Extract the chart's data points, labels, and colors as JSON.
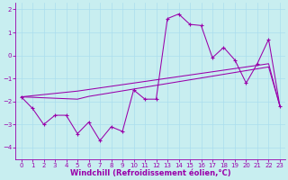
{
  "xlabel": "Windchill (Refroidissement éolien,°C)",
  "bg_color": "#c8eef0",
  "line_color": "#9900aa",
  "grid_color": "#aaddee",
  "x": [
    0,
    1,
    2,
    3,
    4,
    5,
    6,
    7,
    8,
    9,
    10,
    11,
    12,
    13,
    14,
    15,
    16,
    17,
    18,
    19,
    20,
    21,
    22,
    23
  ],
  "y_main": [
    -1.8,
    -2.3,
    -3.0,
    -2.6,
    -2.6,
    -3.4,
    -2.9,
    -3.7,
    -3.1,
    -3.3,
    -1.5,
    -1.9,
    -1.9,
    1.6,
    1.8,
    1.35,
    1.3,
    -0.1,
    0.35,
    -0.2,
    -1.2,
    -0.35,
    0.7,
    -2.2
  ],
  "y_line1": [
    -1.8,
    -1.82,
    -1.84,
    -1.86,
    -1.88,
    -1.9,
    -1.78,
    -1.7,
    -1.62,
    -1.54,
    -1.46,
    -1.38,
    -1.3,
    -1.22,
    -1.14,
    -1.06,
    -0.98,
    -0.9,
    -0.82,
    -0.74,
    -0.66,
    -0.58,
    -0.5,
    -2.2
  ],
  "y_line2": [
    -1.8,
    -1.75,
    -1.7,
    -1.65,
    -1.6,
    -1.55,
    -1.48,
    -1.41,
    -1.34,
    -1.27,
    -1.2,
    -1.13,
    -1.06,
    -0.99,
    -0.92,
    -0.85,
    -0.78,
    -0.71,
    -0.64,
    -0.57,
    -0.5,
    -0.43,
    -0.36,
    -2.2
  ],
  "ylim": [
    -4.5,
    2.3
  ],
  "yticks": [
    -4,
    -3,
    -2,
    -1,
    0,
    1,
    2
  ],
  "xticks": [
    0,
    1,
    2,
    3,
    4,
    5,
    6,
    7,
    8,
    9,
    10,
    11,
    12,
    13,
    14,
    15,
    16,
    17,
    18,
    19,
    20,
    21,
    22,
    23
  ],
  "tick_fontsize": 5.0,
  "xlabel_fontsize": 6.0
}
